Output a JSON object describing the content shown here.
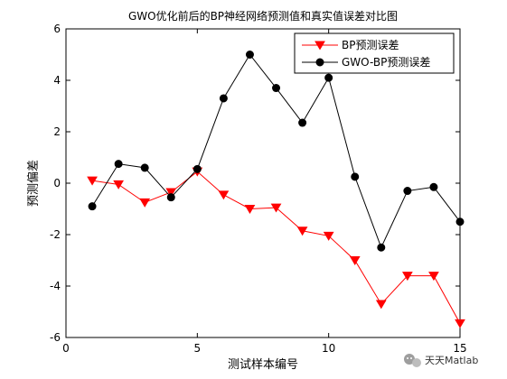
{
  "chart_data": {
    "type": "line",
    "title": "GWO优化前后的BP神经网络预测值和真实值误差对比图",
    "xlabel": "测试样本编号",
    "ylabel": "预测偏差",
    "xlim": [
      0,
      15
    ],
    "ylim": [
      -6,
      6
    ],
    "xticks": [
      0,
      5,
      10,
      15
    ],
    "yticks": [
      -6,
      -4,
      -2,
      0,
      2,
      4,
      6
    ],
    "grid": false,
    "legend_position": "top-right",
    "x": [
      1,
      2,
      3,
      4,
      5,
      6,
      7,
      8,
      9,
      10,
      11,
      12,
      13,
      14,
      15
    ],
    "series": [
      {
        "name": "BP预测误差",
        "color": "#ff0000",
        "marker": "triangle-down",
        "values": [
          0.1,
          -0.05,
          -0.75,
          -0.35,
          0.45,
          -0.45,
          -1.0,
          -0.95,
          -1.85,
          -2.05,
          -3.0,
          -4.7,
          -3.6,
          -3.6,
          -5.45
        ]
      },
      {
        "name": "GWO-BP预测误差",
        "color": "#000000",
        "marker": "circle",
        "values": [
          -0.9,
          0.75,
          0.6,
          -0.55,
          0.55,
          3.3,
          5.0,
          3.7,
          2.35,
          4.1,
          0.25,
          -2.5,
          -0.3,
          -0.15,
          -1.5
        ]
      }
    ]
  },
  "watermark": {
    "text": "天天Matlab",
    "icon": "wechat-icon"
  }
}
